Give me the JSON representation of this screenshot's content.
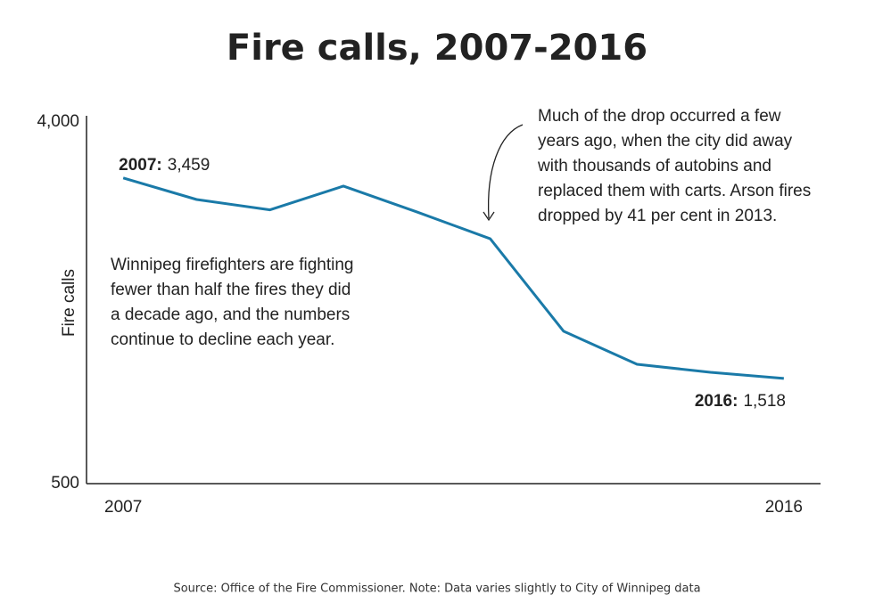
{
  "chart_data": {
    "type": "line",
    "title": "Fire calls, 2007-2016",
    "y_label": "Fire calls",
    "x": [
      2007,
      2008,
      2009,
      2010,
      2011,
      2012,
      2013,
      2014,
      2015,
      2016
    ],
    "series": [
      {
        "name": "Fire calls",
        "color": "#1a7aa8",
        "values": [
          3459,
          3250,
          3150,
          3380,
          3130,
          2870,
          1975,
          1655,
          1578,
          1518
        ],
        "value_labels": [
          "3,459",
          null,
          null,
          null,
          null,
          null,
          null,
          null,
          null,
          "1,518"
        ]
      }
    ],
    "xlim": [
      2006.5,
      2016.5
    ],
    "xticks": [
      2007,
      2016
    ],
    "ylim": [
      500,
      4000
    ],
    "yticks": [
      {
        "value": 500,
        "label": "500"
      },
      {
        "value": 4000,
        "label": "4,000"
      }
    ],
    "point_labels": [
      "2007:",
      "2016:"
    ],
    "annotations": [
      [
        "Winnipeg firefighters are fighting",
        "fewer than half the fires they did",
        "a decade ago, and the numbers",
        "continue to decline each year."
      ],
      [
        "Much of the drop occurred a few",
        "years ago, when the city did away",
        "with thousands of autobins and",
        "replaced them with carts. Arson fires",
        "dropped by 41 per cent in 2013."
      ]
    ],
    "source": "Source: Office of the Fire Commissioner. Note: Data varies slightly to City of Winnipeg data"
  }
}
